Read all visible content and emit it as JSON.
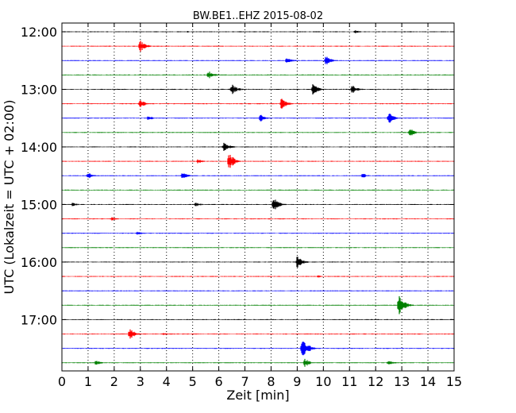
{
  "chart_data": {
    "type": "line",
    "title": "BW.BE1..EHZ 2015-08-02",
    "xlabel": "Zeit  [min]",
    "ylabel": "UTC (Lokalzeit = UTC + 02:00)",
    "xlim": [
      0,
      15
    ],
    "x_ticks": [
      "0",
      "1",
      "2",
      "3",
      "4",
      "5",
      "6",
      "7",
      "8",
      "9",
      "10",
      "11",
      "12",
      "13",
      "14",
      "15"
    ],
    "y_ticks": [
      {
        "label": "12:00",
        "trace": 0
      },
      {
        "label": "13:00",
        "trace": 4
      },
      {
        "label": "14:00",
        "trace": 8
      },
      {
        "label": "15:00",
        "trace": 12
      },
      {
        "label": "16:00",
        "trace": 16
      },
      {
        "label": "17:00",
        "trace": 20
      }
    ],
    "grid": "vertical-dotted",
    "trace_colors": [
      "#000000",
      "#ff0000",
      "#0000ff",
      "#008000"
    ],
    "trace_interval_minutes": 15,
    "traces": [
      {
        "start": "12:00",
        "events": [
          {
            "t": 11.2,
            "a": 0.15
          },
          {
            "t": 4.8,
            "a": 0.08
          }
        ]
      },
      {
        "start": "12:15",
        "events": [
          {
            "t": 3.0,
            "a": 0.45
          }
        ]
      },
      {
        "start": "12:30",
        "events": [
          {
            "t": 8.6,
            "a": 0.3
          },
          {
            "t": 10.1,
            "a": 0.45
          }
        ]
      },
      {
        "start": "12:45",
        "events": [
          {
            "t": 5.6,
            "a": 0.35
          }
        ]
      },
      {
        "start": "13:00",
        "events": [
          {
            "t": 6.5,
            "a": 0.45
          },
          {
            "t": 9.6,
            "a": 0.45
          },
          {
            "t": 11.1,
            "a": 0.35
          }
        ]
      },
      {
        "start": "13:15",
        "events": [
          {
            "t": 3.0,
            "a": 0.3
          },
          {
            "t": 8.4,
            "a": 0.45
          }
        ]
      },
      {
        "start": "13:30",
        "events": [
          {
            "t": 3.3,
            "a": 0.2
          },
          {
            "t": 7.6,
            "a": 0.3
          },
          {
            "t": 12.5,
            "a": 0.45
          }
        ]
      },
      {
        "start": "13:45",
        "events": [
          {
            "t": 13.3,
            "a": 0.35
          }
        ]
      },
      {
        "start": "14:00",
        "events": [
          {
            "t": 6.2,
            "a": 0.4
          }
        ]
      },
      {
        "start": "14:15",
        "events": [
          {
            "t": 6.4,
            "a": 0.7
          },
          {
            "t": 5.2,
            "a": 0.2
          }
        ]
      },
      {
        "start": "14:30",
        "events": [
          {
            "t": 1.0,
            "a": 0.25
          },
          {
            "t": 4.6,
            "a": 0.3
          },
          {
            "t": 11.5,
            "a": 0.2
          }
        ]
      },
      {
        "start": "14:45",
        "events": []
      },
      {
        "start": "15:00",
        "events": [
          {
            "t": 0.4,
            "a": 0.15
          },
          {
            "t": 5.1,
            "a": 0.2
          },
          {
            "t": 8.1,
            "a": 0.55
          }
        ]
      },
      {
        "start": "15:15",
        "events": [
          {
            "t": 1.9,
            "a": 0.15
          }
        ]
      },
      {
        "start": "15:30",
        "events": [
          {
            "t": 2.9,
            "a": 0.15
          }
        ]
      },
      {
        "start": "15:45",
        "events": []
      },
      {
        "start": "16:00",
        "events": [
          {
            "t": 9.0,
            "a": 0.5
          }
        ]
      },
      {
        "start": "16:15",
        "events": [
          {
            "t": 9.8,
            "a": 0.1
          }
        ]
      },
      {
        "start": "16:30",
        "events": []
      },
      {
        "start": "16:45",
        "events": [
          {
            "t": 12.9,
            "a": 0.9
          }
        ]
      },
      {
        "start": "17:00",
        "events": []
      },
      {
        "start": "17:15",
        "events": [
          {
            "t": 2.6,
            "a": 0.45
          },
          {
            "t": 3.9,
            "a": 0.1
          }
        ]
      },
      {
        "start": "17:30",
        "events": [
          {
            "t": 9.2,
            "a": 1.0
          }
        ]
      },
      {
        "start": "17:45",
        "events": [
          {
            "t": 1.3,
            "a": 0.2
          },
          {
            "t": 9.3,
            "a": 0.35
          },
          {
            "t": 12.5,
            "a": 0.2
          }
        ]
      }
    ]
  }
}
